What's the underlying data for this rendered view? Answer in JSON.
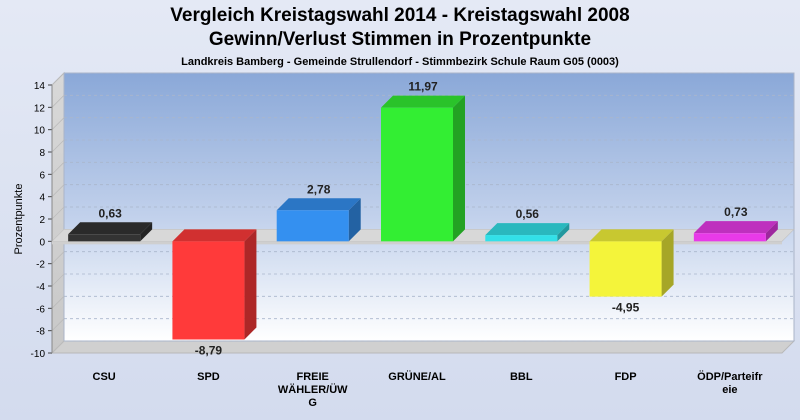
{
  "chart_data": {
    "type": "bar",
    "title": "Vergleich Kreistagswahl 2014 - Kreistagswahl 2008",
    "subtitle": "Gewinn/Verlust Stimmen in Prozentpunkte",
    "subtitle2": "Landkreis Bamberg - Gemeinde Strullendorf - Stimmbezirk Schule Raum G05 (0003)",
    "ylabel": "Prozentpunkte",
    "xlabel": "",
    "ylim": [
      -10,
      14
    ],
    "yticks": [
      "14",
      "12",
      "10",
      "8",
      "6",
      "4",
      "2",
      "0",
      "-2",
      "-4",
      "-6",
      "-8",
      "-10"
    ],
    "grid": true,
    "categories": [
      {
        "name": "CSU",
        "lines": [
          "CSU"
        ]
      },
      {
        "name": "SPD",
        "lines": [
          "SPD"
        ]
      },
      {
        "name": "FREIE WÄHLER/ÜWG",
        "lines": [
          "FREIE",
          "WÄHLER/ÜW",
          "G"
        ]
      },
      {
        "name": "GRÜNE/AL",
        "lines": [
          "GRÜNE/AL"
        ]
      },
      {
        "name": "BBL",
        "lines": [
          "BBL"
        ]
      },
      {
        "name": "FDP",
        "lines": [
          "FDP"
        ]
      },
      {
        "name": "ÖDP/Parteifreie",
        "lines": [
          "ÖDP/Parteifr",
          "eie"
        ]
      }
    ],
    "values": [
      0.63,
      -8.79,
      2.78,
      11.97,
      0.56,
      -4.95,
      0.73
    ],
    "labels": [
      "0,63",
      "-8,79",
      "2,78",
      "11,97",
      "0,56",
      "-4,95",
      "0,73"
    ],
    "colors": [
      "#333333",
      "#ff3a3a",
      "#3490f0",
      "#33ee33",
      "#33e0e8",
      "#f4f43a",
      "#e83ae8"
    ]
  }
}
